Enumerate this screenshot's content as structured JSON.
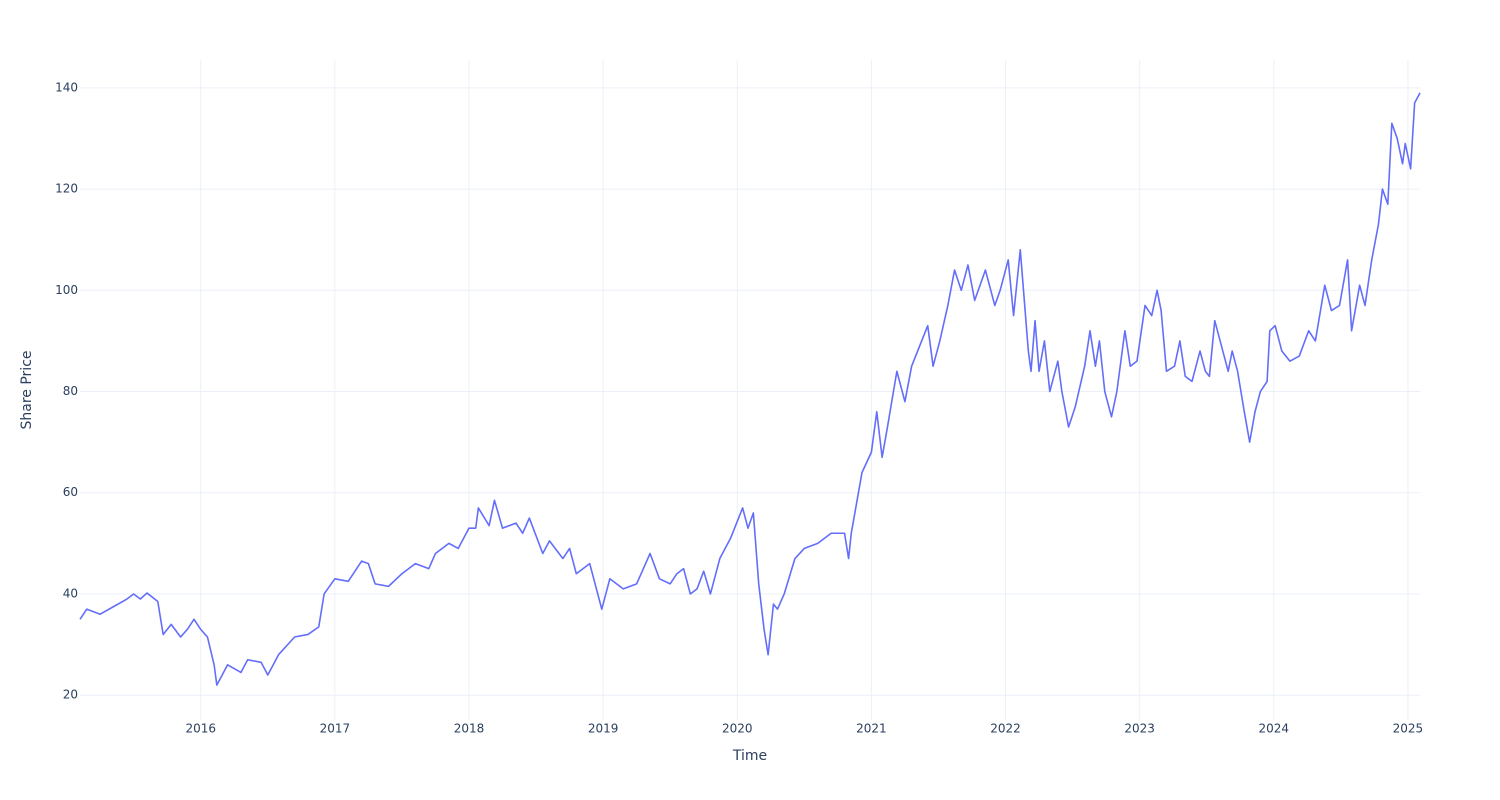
{
  "chart_data": {
    "type": "line",
    "x_label": "Time",
    "y_label": "Share Price",
    "color": "#636efa",
    "grid": true,
    "xlim": [
      2015.1,
      2025.09
    ],
    "xticks": [
      2016,
      2017,
      2018,
      2019,
      2020,
      2021,
      2022,
      2023,
      2024,
      2025
    ],
    "ylim": [
      15.1,
      145.5
    ],
    "yticks": [
      20,
      40,
      60,
      80,
      100,
      120,
      140
    ],
    "x": [
      2015.1,
      2015.15,
      2015.25,
      2015.35,
      2015.45,
      2015.5,
      2015.55,
      2015.6,
      2015.68,
      2015.72,
      2015.78,
      2015.85,
      2015.9,
      2015.95,
      2016.0,
      2016.05,
      2016.1,
      2016.12,
      2016.2,
      2016.3,
      2016.35,
      2016.45,
      2016.5,
      2016.58,
      2016.7,
      2016.8,
      2016.88,
      2016.92,
      2017.0,
      2017.1,
      2017.2,
      2017.25,
      2017.3,
      2017.4,
      2017.5,
      2017.6,
      2017.7,
      2017.75,
      2017.85,
      2017.92,
      2018.0,
      2018.05,
      2018.07,
      2018.15,
      2018.19,
      2018.25,
      2018.35,
      2018.4,
      2018.45,
      2018.55,
      2018.6,
      2018.7,
      2018.75,
      2018.8,
      2018.9,
      2018.95,
      2018.99,
      2019.05,
      2019.15,
      2019.25,
      2019.35,
      2019.42,
      2019.5,
      2019.55,
      2019.6,
      2019.65,
      2019.7,
      2019.75,
      2019.8,
      2019.87,
      2019.95,
      2020.04,
      2020.08,
      2020.12,
      2020.16,
      2020.2,
      2020.23,
      2020.27,
      2020.3,
      2020.35,
      2020.43,
      2020.5,
      2020.6,
      2020.7,
      2020.8,
      2020.83,
      2020.85,
      2020.93,
      2021.0,
      2021.04,
      2021.08,
      2021.12,
      2021.19,
      2021.25,
      2021.3,
      2021.42,
      2021.46,
      2021.51,
      2021.57,
      2021.62,
      2021.67,
      2021.72,
      2021.77,
      2021.85,
      2021.92,
      2021.96,
      2022.02,
      2022.06,
      2022.11,
      2022.17,
      2022.19,
      2022.22,
      2022.25,
      2022.29,
      2022.33,
      2022.39,
      2022.42,
      2022.47,
      2022.52,
      2022.59,
      2022.63,
      2022.67,
      2022.7,
      2022.74,
      2022.79,
      2022.83,
      2022.89,
      2022.93,
      2022.98,
      2023.04,
      2023.09,
      2023.13,
      2023.16,
      2023.2,
      2023.26,
      2023.3,
      2023.34,
      2023.39,
      2023.45,
      2023.49,
      2023.52,
      2023.56,
      2023.6,
      2023.66,
      2023.69,
      2023.73,
      2023.78,
      2023.82,
      2023.86,
      2023.9,
      2023.95,
      2023.97,
      2024.01,
      2024.06,
      2024.12,
      2024.19,
      2024.26,
      2024.31,
      2024.38,
      2024.43,
      2024.49,
      2024.55,
      2024.58,
      2024.64,
      2024.68,
      2024.73,
      2024.78,
      2024.81,
      2024.85,
      2024.88,
      2024.92,
      2024.96,
      2024.98,
      2025.02,
      2025.05,
      2025.09
    ],
    "values": [
      35,
      37,
      36,
      37.5,
      39,
      40,
      39,
      40.2,
      38.5,
      32,
      34,
      31.5,
      33,
      35,
      33,
      31.5,
      26,
      22,
      26,
      24.5,
      27,
      26.5,
      24,
      28,
      31.5,
      32,
      33.5,
      40,
      43,
      42.5,
      46.5,
      46,
      42,
      41.5,
      44,
      46,
      45,
      48,
      50,
      49,
      53,
      53,
      57,
      53.5,
      58.5,
      53,
      54,
      52,
      55,
      48,
      50.5,
      47,
      49,
      44,
      46,
      41,
      37,
      43,
      41,
      42,
      48,
      43,
      42,
      44,
      45,
      40,
      41,
      44.5,
      40,
      47,
      51,
      57,
      53,
      56,
      42,
      33,
      28,
      38,
      37,
      40,
      47,
      49,
      50,
      52,
      52,
      47,
      52,
      64,
      68,
      76,
      67,
      73,
      84,
      78,
      85,
      93,
      85,
      90,
      97,
      104,
      100,
      105,
      98,
      104,
      97,
      100,
      106,
      95,
      108,
      88,
      84,
      94,
      84,
      90,
      80,
      86,
      80,
      73,
      77,
      85,
      92,
      85,
      90,
      80,
      75,
      80,
      92,
      85,
      86,
      97,
      95,
      100,
      96,
      84,
      85,
      90,
      83,
      82,
      88,
      84,
      83,
      94,
      90,
      84,
      88,
      84,
      76,
      70,
      76,
      80,
      82,
      92,
      93,
      88,
      86,
      87,
      92,
      90,
      101,
      96,
      97,
      106,
      92,
      101,
      97,
      106,
      113,
      120,
      117,
      133,
      130,
      125,
      129,
      124,
      137,
      139
    ]
  }
}
